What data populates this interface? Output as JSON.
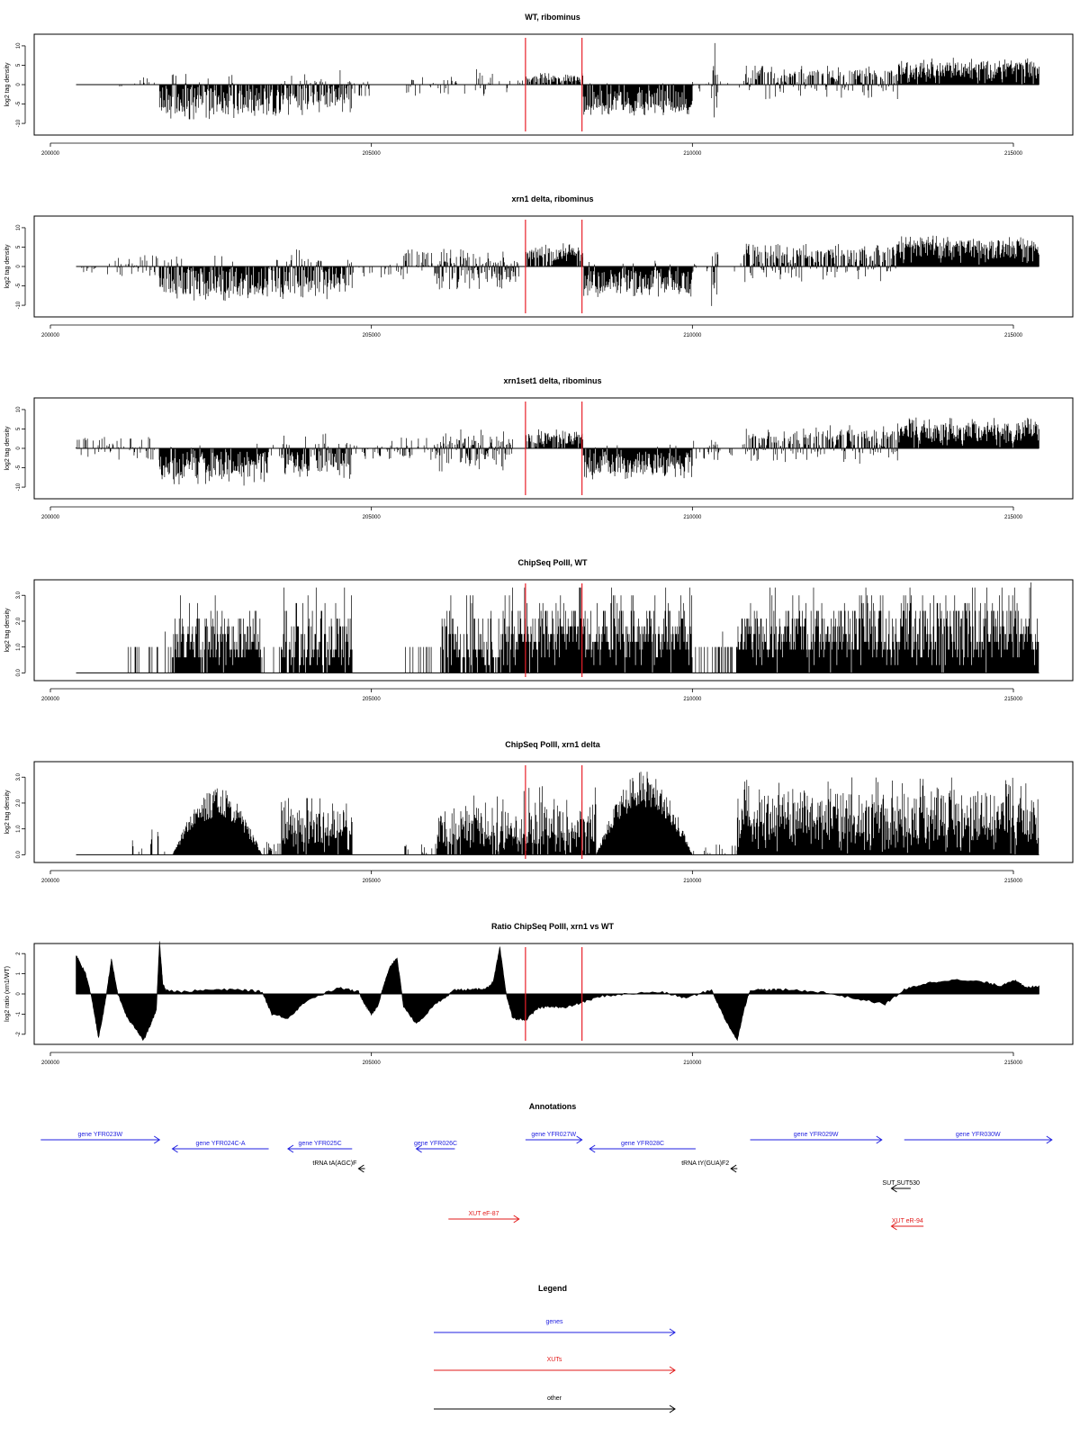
{
  "colors": {
    "signal": "#000000",
    "marker": "#e8202a",
    "gene": "#1f1fe0",
    "xut": "#e21a1a",
    "other": "#000000",
    "frame": "#000000"
  },
  "x_axis": {
    "range": [
      200000,
      215500
    ],
    "ticks": [
      200000,
      205000,
      210000,
      215000
    ],
    "tick_labels": [
      "200000",
      "205000",
      "210000",
      "215000"
    ]
  },
  "markers": [
    207400,
    208280
  ],
  "chart_data": [
    {
      "type": "bar",
      "title": "WT, ribominus",
      "ylabel": "log2 tag density",
      "ylim": [
        -13,
        13
      ],
      "yticks": [
        -10,
        -5,
        0,
        5,
        10
      ],
      "ytick_labels": [
        "-10",
        "-5",
        "0",
        "5",
        "10"
      ],
      "x_start": 200400,
      "x_end": 215400,
      "baseline": 0,
      "regions": [
        {
          "x": [
            200500,
            201400
          ],
          "min": -1,
          "max": 1,
          "density": 0.05
        },
        {
          "x": [
            201400,
            201700
          ],
          "min": 0,
          "max": 2,
          "density": 0.3
        },
        {
          "x": [
            201700,
            203300
          ],
          "min": -9,
          "max": 3,
          "density": 0.9,
          "bias": -5
        },
        {
          "x": [
            203300,
            203600
          ],
          "min": -8,
          "max": 1,
          "density": 0.8
        },
        {
          "x": [
            203600,
            204700
          ],
          "min": -8,
          "max": 4,
          "density": 0.9,
          "bias": -3
        },
        {
          "x": [
            204700,
            205000
          ],
          "min": -3,
          "max": 1,
          "density": 0.3
        },
        {
          "x": [
            205500,
            206600
          ],
          "min": -3,
          "max": 2,
          "density": 0.25
        },
        {
          "x": [
            206600,
            207000
          ],
          "min": -3,
          "max": 4,
          "density": 0.4
        },
        {
          "x": [
            207000,
            207400
          ],
          "min": -2,
          "max": 2,
          "density": 0.2
        },
        {
          "x": [
            207400,
            208300
          ],
          "min": 0,
          "max": 3,
          "density": 0.8,
          "bias": 1.5
        },
        {
          "x": [
            208300,
            210000
          ],
          "min": -8,
          "max": 1,
          "density": 0.95,
          "bias": -5
        },
        {
          "x": [
            210000,
            210300
          ],
          "min": -2,
          "max": 1,
          "density": 0.2
        },
        {
          "x": [
            210300,
            210400
          ],
          "min": -13,
          "max": 12,
          "density": 1.0,
          "bias": 0
        },
        {
          "x": [
            210400,
            210800
          ],
          "min": -1,
          "max": 1,
          "density": 0.1
        },
        {
          "x": [
            210800,
            213200
          ],
          "min": -4,
          "max": 5,
          "density": 0.75,
          "bias": 2
        },
        {
          "x": [
            213200,
            215400
          ],
          "min": 0,
          "max": 7,
          "density": 1.0,
          "bias": 4
        }
      ]
    },
    {
      "type": "bar",
      "title": "xrn1 delta, ribominus",
      "ylabel": "log2 tag density",
      "ylim": [
        -13,
        13
      ],
      "yticks": [
        -10,
        -5,
        0,
        5,
        10
      ],
      "ytick_labels": [
        "-10",
        "-5",
        "0",
        "5",
        "10"
      ],
      "x_start": 200400,
      "x_end": 215400,
      "baseline": 0,
      "regions": [
        {
          "x": [
            200400,
            201000
          ],
          "min": -2,
          "max": 1,
          "density": 0.15
        },
        {
          "x": [
            201000,
            201700
          ],
          "min": -3,
          "max": 3,
          "density": 0.4
        },
        {
          "x": [
            201700,
            203300
          ],
          "min": -9,
          "max": 3,
          "density": 0.95,
          "bias": -5
        },
        {
          "x": [
            203300,
            203600
          ],
          "min": -8,
          "max": 2,
          "density": 0.8
        },
        {
          "x": [
            203600,
            204700
          ],
          "min": -9,
          "max": 5,
          "density": 0.95,
          "bias": -3
        },
        {
          "x": [
            204700,
            205300
          ],
          "min": -3,
          "max": 1,
          "density": 0.3
        },
        {
          "x": [
            205300,
            205700
          ],
          "min": -4,
          "max": 5,
          "density": 0.4
        },
        {
          "x": [
            205700,
            206000
          ],
          "min": -3,
          "max": 4,
          "density": 0.5
        },
        {
          "x": [
            206000,
            207300
          ],
          "min": -6,
          "max": 5,
          "density": 0.95,
          "bias": -1
        },
        {
          "x": [
            207400,
            208300
          ],
          "min": 0,
          "max": 6,
          "density": 0.85,
          "bias": 3
        },
        {
          "x": [
            208300,
            210000
          ],
          "min": -8,
          "max": 2,
          "density": 1.0,
          "bias": -5
        },
        {
          "x": [
            210000,
            210300
          ],
          "min": -3,
          "max": 1,
          "density": 0.3
        },
        {
          "x": [
            210300,
            210400
          ],
          "min": -11,
          "max": 10,
          "density": 1.0,
          "bias": 0
        },
        {
          "x": [
            210400,
            210800
          ],
          "min": -2,
          "max": 1,
          "density": 0.15
        },
        {
          "x": [
            210800,
            213200
          ],
          "min": -4,
          "max": 6,
          "density": 0.9,
          "bias": 2
        },
        {
          "x": [
            213200,
            215400
          ],
          "min": 0,
          "max": 8,
          "density": 1.0,
          "bias": 5
        }
      ]
    },
    {
      "type": "bar",
      "title": "xrn1set1 delta, ribominus",
      "ylabel": "log2 tag density",
      "ylim": [
        -13,
        13
      ],
      "yticks": [
        -10,
        -5,
        0,
        5,
        10
      ],
      "ytick_labels": [
        "-10",
        "-5",
        "0",
        "5",
        "10"
      ],
      "x_start": 200400,
      "x_end": 215400,
      "baseline": 0,
      "regions": [
        {
          "x": [
            200400,
            201700
          ],
          "min": -3,
          "max": 3,
          "density": 0.45
        },
        {
          "x": [
            201700,
            203400
          ],
          "min": -10,
          "max": 2,
          "density": 0.95,
          "bias": -5
        },
        {
          "x": [
            203400,
            203600
          ],
          "min": -3,
          "max": 1,
          "density": 0.3
        },
        {
          "x": [
            203600,
            204700
          ],
          "min": -8,
          "max": 4,
          "density": 0.9,
          "bias": -3
        },
        {
          "x": [
            204700,
            205300
          ],
          "min": -3,
          "max": 1,
          "density": 0.3
        },
        {
          "x": [
            205300,
            206000
          ],
          "min": -3,
          "max": 3,
          "density": 0.4
        },
        {
          "x": [
            206000,
            207200
          ],
          "min": -6,
          "max": 5,
          "density": 0.95,
          "bias": -1
        },
        {
          "x": [
            207400,
            208300
          ],
          "min": 0,
          "max": 5,
          "density": 0.85,
          "bias": 2.5
        },
        {
          "x": [
            208300,
            210000
          ],
          "min": -8,
          "max": 1,
          "density": 1.0,
          "bias": -4
        },
        {
          "x": [
            210000,
            210300
          ],
          "min": -3,
          "max": 2,
          "density": 0.3
        },
        {
          "x": [
            210300,
            210400
          ],
          "min": -3,
          "max": 5,
          "density": 0.8
        },
        {
          "x": [
            210400,
            210800
          ],
          "min": -2,
          "max": 1,
          "density": 0.15
        },
        {
          "x": [
            210800,
            213200
          ],
          "min": -4,
          "max": 6,
          "density": 0.85,
          "bias": 2
        },
        {
          "x": [
            213200,
            215400
          ],
          "min": 0,
          "max": 8,
          "density": 1.0,
          "bias": 4.5
        }
      ]
    },
    {
      "type": "bar",
      "title": "ChipSeq PolII, WT",
      "ylabel": "log2 tag density",
      "ylim": [
        -0.3,
        3.6
      ],
      "yticks": [
        0,
        1,
        2,
        3
      ],
      "ytick_labels": [
        "0.0",
        "1.0",
        "2.0",
        "3.0"
      ],
      "x_start": 200400,
      "x_end": 215400,
      "baseline": 0,
      "regions": [
        {
          "x": [
            201200,
            201900
          ],
          "min": 0,
          "max": 1.6,
          "density": 0.25,
          "step": 1
        },
        {
          "x": [
            201900,
            203300
          ],
          "min": 0,
          "max": 3.0,
          "density": 0.95,
          "bias": 1.2,
          "step": 0.3
        },
        {
          "x": [
            203300,
            203600
          ],
          "min": 0,
          "max": 1.6,
          "density": 0.4,
          "step": 1
        },
        {
          "x": [
            203600,
            204700
          ],
          "min": 0,
          "max": 3.3,
          "density": 0.9,
          "bias": 1.0,
          "step": 0.3
        },
        {
          "x": [
            205500,
            206100
          ],
          "min": 0,
          "max": 1.6,
          "density": 0.3,
          "step": 1
        },
        {
          "x": [
            206100,
            207200
          ],
          "min": 0,
          "max": 3.3,
          "density": 0.9,
          "bias": 1.0,
          "step": 0.3
        },
        {
          "x": [
            207200,
            210000
          ],
          "min": 0,
          "max": 3.3,
          "density": 1.0,
          "bias": 1.5,
          "step": 0.3
        },
        {
          "x": [
            210000,
            210700
          ],
          "min": 0,
          "max": 1.6,
          "density": 0.4,
          "step": 1
        },
        {
          "x": [
            210700,
            215400
          ],
          "min": 0,
          "max": 3.5,
          "density": 1.0,
          "bias": 1.5,
          "step": 0.3
        }
      ]
    },
    {
      "type": "bar",
      "title": "ChipSeq PolII, xrn1 delta",
      "ylabel": "log2 tag density",
      "ylim": [
        -0.3,
        3.6
      ],
      "yticks": [
        0,
        1,
        2,
        3
      ],
      "ytick_labels": [
        "0.0",
        "1.0",
        "2.0",
        "3.0"
      ],
      "x_start": 200400,
      "x_end": 215400,
      "baseline": 0,
      "regions": [
        {
          "x": [
            201200,
            201900
          ],
          "min": 0,
          "max": 1.0,
          "density": 0.1
        },
        {
          "x": [
            201900,
            203300
          ],
          "min": 0,
          "max": 2.6,
          "density": 1.0,
          "bias": 1.3,
          "hump": true
        },
        {
          "x": [
            203300,
            203600
          ],
          "min": 0,
          "max": 0.5,
          "density": 0.4
        },
        {
          "x": [
            203600,
            204700
          ],
          "min": 0,
          "max": 2.3,
          "density": 0.95,
          "bias": 1.0
        },
        {
          "x": [
            205500,
            206000
          ],
          "min": 0,
          "max": 0.4,
          "density": 0.2
        },
        {
          "x": [
            206000,
            207200
          ],
          "min": 0,
          "max": 2.3,
          "density": 0.9,
          "bias": 0.8
        },
        {
          "x": [
            207200,
            208500
          ],
          "min": 0,
          "max": 2.7,
          "density": 0.95,
          "bias": 1.0
        },
        {
          "x": [
            208500,
            210000
          ],
          "min": 0,
          "max": 3.3,
          "density": 1.0,
          "bias": 1.6,
          "hump": true
        },
        {
          "x": [
            210000,
            210700
          ],
          "min": 0,
          "max": 0.4,
          "density": 0.15
        },
        {
          "x": [
            210700,
            215400
          ],
          "min": 0,
          "max": 3.0,
          "density": 1.0,
          "bias": 1.4
        }
      ]
    },
    {
      "type": "area",
      "title": "Ratio ChipSeq PolII, xrn1 vs WT",
      "ylabel": "log2 ratio (xrn1/WT)",
      "ylim": [
        -2.5,
        2.5
      ],
      "yticks": [
        -2,
        -1,
        0,
        1,
        2
      ],
      "ytick_labels": [
        "-2",
        "-1",
        "0",
        "1",
        "2"
      ],
      "x_start": 200400,
      "x_end": 215400,
      "baseline": 0,
      "x": [
        200400,
        200450,
        200550,
        200650,
        200750,
        200850,
        200950,
        201050,
        201200,
        201350,
        201450,
        201550,
        201650,
        201700,
        201750,
        201800,
        202000,
        202500,
        203000,
        203300,
        203450,
        203700,
        204000,
        204500,
        204800,
        204900,
        205000,
        205100,
        205200,
        205300,
        205400,
        205500,
        205700,
        206000,
        206300,
        206600,
        206800,
        206900,
        207000,
        207100,
        207200,
        207400,
        207600,
        207800,
        208000,
        208300,
        208600,
        209000,
        209500,
        209900,
        210300,
        210500,
        210700,
        210800,
        210900,
        211200,
        211500,
        212000,
        212500,
        213000,
        213300,
        213600,
        214000,
        214500,
        214800,
        215000,
        215200,
        215400
      ],
      "y": [
        1.9,
        1.6,
        1.0,
        -0.3,
        -2.2,
        -0.5,
        1.7,
        0.0,
        -1.2,
        -1.8,
        -2.3,
        -1.6,
        -0.8,
        2.6,
        0.5,
        0.2,
        0.1,
        0.2,
        0.2,
        0.1,
        -1.0,
        -1.2,
        -0.3,
        0.3,
        0.1,
        -0.5,
        -1.0,
        -0.6,
        0.5,
        1.4,
        1.8,
        -0.6,
        -1.5,
        -0.5,
        0.2,
        0.2,
        0.3,
        0.6,
        2.3,
        0.0,
        -1.2,
        -1.3,
        -0.7,
        -0.6,
        -0.7,
        -0.4,
        -0.1,
        0.0,
        0.1,
        -0.2,
        0.2,
        -1.2,
        -2.3,
        -0.8,
        0.2,
        0.2,
        0.2,
        0.1,
        -0.2,
        -0.5,
        0.2,
        0.5,
        0.7,
        0.6,
        0.4,
        0.7,
        0.3,
        0.4
      ]
    }
  ],
  "annotations": {
    "title": "Annotations",
    "items": [
      {
        "label": "gene YFR023W",
        "type": "gene",
        "start": 199850,
        "end": 201700,
        "row": 0
      },
      {
        "label": "gene YFR024C-A",
        "type": "gene",
        "start": 201900,
        "end": 203400,
        "row": 1
      },
      {
        "label": "gene YFR025C",
        "type": "gene",
        "start": 203700,
        "end": 204700,
        "row": 1
      },
      {
        "label": "gene YFR026C",
        "type": "gene",
        "start": 205700,
        "end": 206300,
        "row": 1
      },
      {
        "label": "gene YFR027W",
        "type": "gene",
        "start": 207400,
        "end": 208280,
        "row": 0
      },
      {
        "label": "gene YFR028C",
        "type": "gene",
        "start": 208400,
        "end": 210050,
        "row": 1
      },
      {
        "label": "gene YFR029W",
        "type": "gene",
        "start": 210900,
        "end": 212950,
        "row": 0
      },
      {
        "label": "gene YFR030W",
        "type": "gene",
        "start": 213300,
        "end": 215600,
        "row": 0
      },
      {
        "label": "tRNA tA(AGC)F",
        "type": "other",
        "start": 204800,
        "end": 204900,
        "row": 2
      },
      {
        "label": "tRNA tY(GUA)F2",
        "type": "other",
        "start": 210600,
        "end": 210700,
        "row": 2
      },
      {
        "label": "SUT SUT530",
        "type": "other",
        "start": 213100,
        "end": 213400,
        "row": 3
      },
      {
        "label": "XUT eF-87",
        "type": "xut",
        "start": 206200,
        "end": 207300,
        "row": 5
      },
      {
        "label": "XUT eR-94",
        "type": "xut",
        "start": 213100,
        "end": 213600,
        "row": 6
      }
    ]
  },
  "legend": {
    "title": "Legend",
    "items": [
      {
        "label": "genes",
        "color_key": "gene"
      },
      {
        "label": "XUTs",
        "color_key": "xut"
      },
      {
        "label": "other",
        "color_key": "other"
      }
    ]
  }
}
